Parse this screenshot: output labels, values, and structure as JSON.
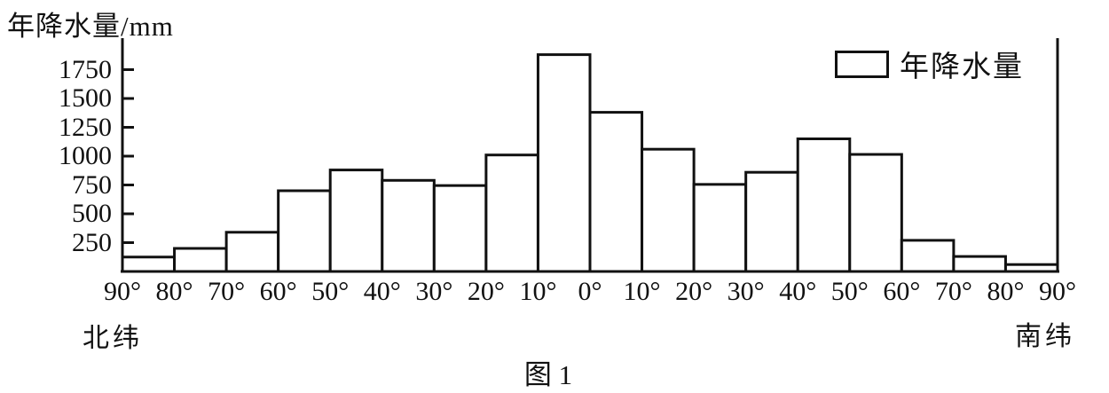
{
  "figure": {
    "caption": "图 1"
  },
  "axis": {
    "y_label": "年降水量/mm",
    "y_ticks": [
      250,
      500,
      750,
      1000,
      1250,
      1500,
      1750
    ],
    "x_tick_labels": [
      "90°",
      "80°",
      "70°",
      "60°",
      "50°",
      "40°",
      "30°",
      "20°",
      "10°",
      "0°",
      "10°",
      "20°",
      "30°",
      "40°",
      "50°",
      "60°",
      "70°",
      "80°",
      "90°"
    ],
    "x_left_label": "北纬",
    "x_right_label": "南纬"
  },
  "legend": {
    "label": "年降水量"
  },
  "colors": {
    "ink": "#111111",
    "background": "#ffffff",
    "bar_fill": "#ffffff"
  },
  "chart_data": {
    "type": "bar",
    "title": "年降水量/mm",
    "xlabel": "纬度 (北纬 90° → 0° → 南纬 90°)",
    "ylabel": "年降水量/mm",
    "units": "mm",
    "ylim": [
      0,
      2000
    ],
    "grid": false,
    "legend_position": "top-right",
    "categories": [
      "90°-80°N",
      "80°-70°N",
      "70°-60°N",
      "60°-50°N",
      "50°-40°N",
      "40°-30°N",
      "30°-20°N",
      "20°-10°N",
      "10°-0°N",
      "0°-10°S",
      "10°-20°S",
      "20°-30°S",
      "30°-40°S",
      "40°-50°S",
      "50°-60°S",
      "60°-70°S",
      "70°-80°S",
      "80°-90°S"
    ],
    "values": [
      125,
      200,
      340,
      700,
      880,
      790,
      745,
      1010,
      1880,
      1380,
      1060,
      755,
      860,
      1150,
      1015,
      270,
      130,
      60
    ]
  }
}
